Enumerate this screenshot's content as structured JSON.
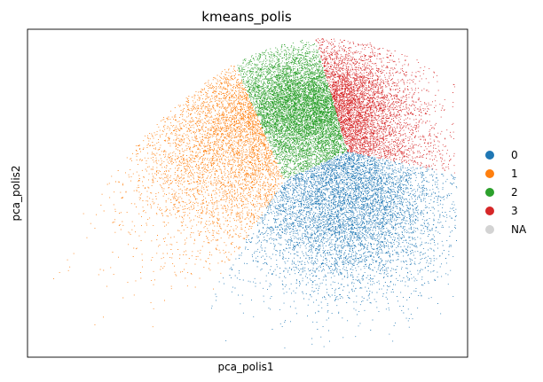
{
  "chart_data": {
    "type": "scatter",
    "title": "kmeans_polis",
    "xlabel": "pca_polis1",
    "ylabel": "pca_polis2",
    "xlim": [
      -6,
      4.2
    ],
    "ylim": [
      -4.2,
      3.2
    ],
    "grid": false,
    "ticks": false,
    "legend_placement": "right",
    "legend": [
      {
        "label": "0",
        "color": "#1f77b4"
      },
      {
        "label": "1",
        "color": "#ff7f0e"
      },
      {
        "label": "2",
        "color": "#2ca02c"
      },
      {
        "label": "3",
        "color": "#d62728"
      },
      {
        "label": "NA",
        "color": "#d3d3d3"
      }
    ],
    "series": [
      {
        "name": "0",
        "color": "#1f77b4",
        "count": 9000,
        "x_range": [
          -1.6,
          4.0
        ],
        "y_range": [
          -3.6,
          0.7
        ]
      },
      {
        "name": "1",
        "color": "#ff7f0e",
        "count": 5000,
        "x_range": [
          -5.6,
          0.8
        ],
        "y_range": [
          -3.8,
          2.4
        ]
      },
      {
        "name": "2",
        "color": "#2ca02c",
        "count": 11000,
        "x_range": [
          -1.4,
          1.4
        ],
        "y_range": [
          -0.2,
          2.8
        ]
      },
      {
        "name": "3",
        "color": "#d62728",
        "count": 8000,
        "x_range": [
          0.2,
          3.6
        ],
        "y_range": [
          0.6,
          3.1
        ]
      }
    ]
  }
}
